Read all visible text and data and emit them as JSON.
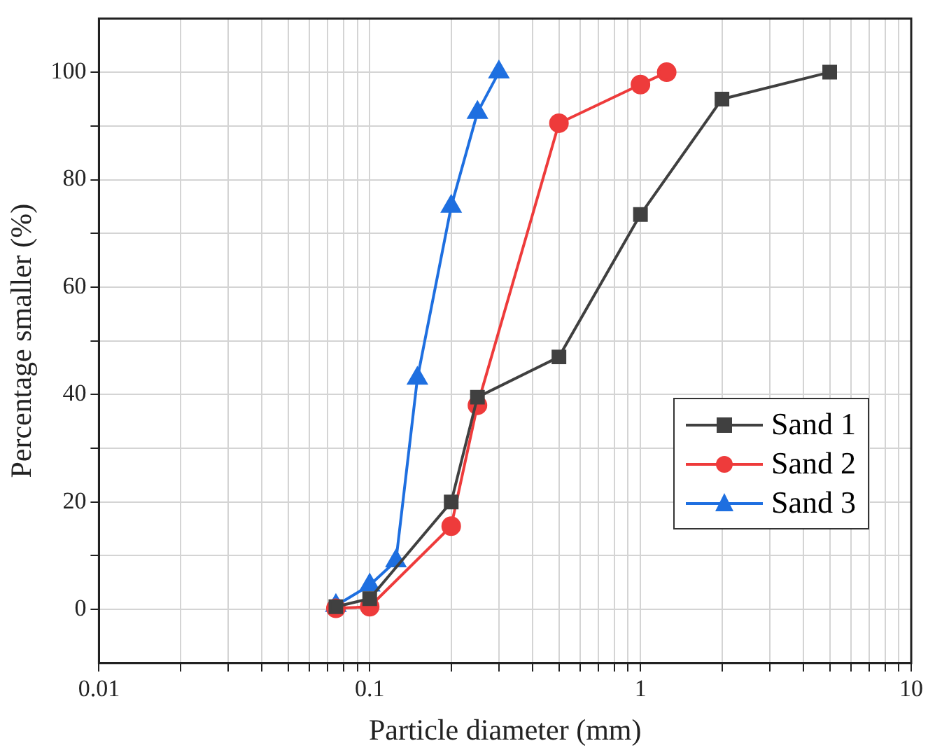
{
  "chart_data": {
    "type": "line",
    "xlabel": "Particle diameter (mm)",
    "ylabel": "Percentage smaller (%)",
    "log": "x",
    "xlim": [
      0.01,
      10
    ],
    "xticks": [
      0.01,
      {
        "value": 0.02,
        "label": null
      },
      {
        "value": 0.03,
        "label": null
      },
      {
        "value": 0.04,
        "label": null
      },
      {
        "value": 0.05,
        "label": null
      },
      {
        "value": 0.06,
        "label": null
      },
      {
        "value": 0.07,
        "label": null
      },
      {
        "value": 0.08,
        "label": null
      },
      {
        "value": 0.09,
        "label": null
      },
      0.1,
      {
        "value": 0.2,
        "label": null
      },
      {
        "value": 0.3,
        "label": null
      },
      {
        "value": 0.4,
        "label": null
      },
      {
        "value": 0.5,
        "label": null
      },
      {
        "value": 0.6,
        "label": null
      },
      {
        "value": 0.7,
        "label": null
      },
      {
        "value": 0.8,
        "label": null
      },
      {
        "value": 0.9,
        "label": null
      },
      1,
      {
        "value": 2,
        "label": null
      },
      {
        "value": 3,
        "label": null
      },
      {
        "value": 4,
        "label": null
      },
      {
        "value": 5,
        "label": null
      },
      {
        "value": 6,
        "label": null
      },
      {
        "value": 7,
        "label": null
      },
      {
        "value": 8,
        "label": null
      },
      {
        "value": 9,
        "label": null
      },
      10
    ],
    "ylim": [
      -10,
      110
    ],
    "yticks": [
      0,
      {
        "value": 10,
        "label": null
      },
      20,
      {
        "value": 30,
        "label": null
      },
      40,
      {
        "value": 50,
        "label": null
      },
      60,
      {
        "value": 70,
        "label": null
      },
      80,
      {
        "value": 90,
        "label": null
      },
      100
    ],
    "grid": true,
    "legend": "bottom right",
    "line_style": "solid",
    "series": [
      {
        "name": "Sand 1",
        "color": "#404040",
        "marker": "square",
        "x": [
          0.075,
          0.1,
          0.2,
          0.25,
          0.5,
          1,
          2,
          5
        ],
        "values": [
          0.5,
          2,
          20,
          39.5,
          47,
          73.5,
          95,
          100
        ]
      },
      {
        "name": "Sand 2",
        "color": "#ee3b3b",
        "marker": "circle",
        "x": [
          0.075,
          0.1,
          0.2,
          0.25,
          0.5,
          1,
          1.25
        ],
        "values": [
          0.2,
          0.5,
          15.5,
          38,
          90.5,
          97.7,
          100
        ]
      },
      {
        "name": "Sand 3",
        "color": "#1e6fe0",
        "marker": "triangle",
        "x": [
          0.075,
          0.1,
          0.125,
          0.15,
          0.2,
          0.25,
          0.3
        ],
        "values": [
          0.7,
          4.5,
          9,
          43,
          75,
          92.5,
          100
        ]
      }
    ]
  }
}
